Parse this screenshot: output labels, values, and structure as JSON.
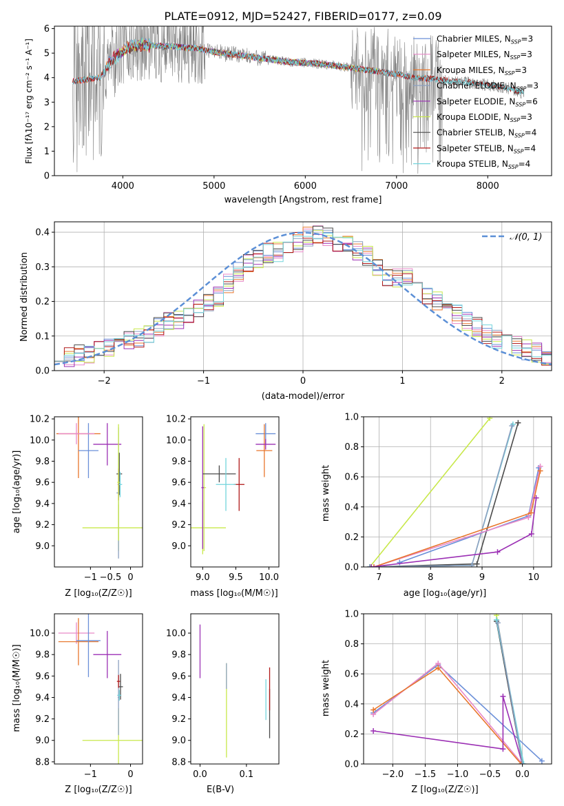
{
  "colors": {
    "Chabrier MILES": "#6a8fd8",
    "Salpeter MILES": "#e889c8",
    "Kroupa MILES": "#e8762c",
    "Chabrier ELODIE": "#8ca0c0",
    "Salpeter ELODIE": "#9b2fb4",
    "Kroupa ELODIE": "#c8e84a",
    "Chabrier STELIB": "#4a4a4a",
    "Salpeter STELIB": "#b01818",
    "Kroupa STELIB": "#72d4dc",
    "data_spectrum": "#808080",
    "normal_curve": "#5b8fd6"
  },
  "chart_data": [
    {
      "id": "spectrum",
      "type": "line",
      "title": "PLATE=0912, MJD=52427, FIBERID=0177, z=0.09",
      "xlabel": "wavelength [Angstrom, rest frame]",
      "ylabel": "Flux [fλ10⁻¹⁷ erg cm⁻² s⁻¹ A⁻¹]",
      "xlim": [
        3250,
        8700
      ],
      "ylim": [
        0,
        6.1
      ],
      "xticks": [
        4000,
        5000,
        6000,
        7000,
        8000
      ],
      "yticks": [
        0,
        1,
        2,
        3,
        4,
        5,
        6
      ],
      "legend_position": "top-right",
      "legend": [
        {
          "label": "Chabrier MILES, N",
          "sub": "SSP",
          "suffix": "=3"
        },
        {
          "label": "Salpeter MILES, N",
          "sub": "SSP",
          "suffix": "=3"
        },
        {
          "label": "Kroupa MILES, N",
          "sub": "SSP",
          "suffix": "=3"
        },
        {
          "label": "Chabrier ELODIE, N",
          "sub": "SSP",
          "suffix": "=3"
        },
        {
          "label": "Salpeter ELODIE, N",
          "sub": "SSP",
          "suffix": "=6"
        },
        {
          "label": "Kroupa ELODIE, N",
          "sub": "SSP",
          "suffix": "=3"
        },
        {
          "label": "Chabrier STELIB, N",
          "sub": "SSP",
          "suffix": "=4"
        },
        {
          "label": "Salpeter STELIB, N",
          "sub": "SSP",
          "suffix": "=4"
        },
        {
          "label": "Kroupa STELIB, N",
          "sub": "SSP",
          "suffix": "=4"
        }
      ],
      "continuum": [
        [
          3450,
          3.85
        ],
        [
          3550,
          3.9
        ],
        [
          3650,
          3.95
        ],
        [
          3750,
          4.0
        ],
        [
          3850,
          4.6
        ],
        [
          3950,
          4.9
        ],
        [
          4050,
          5.2
        ],
        [
          4200,
          5.35
        ],
        [
          4400,
          5.3
        ],
        [
          4600,
          5.25
        ],
        [
          4800,
          5.2
        ],
        [
          5000,
          5.05
        ],
        [
          5200,
          4.95
        ],
        [
          5400,
          4.85
        ],
        [
          5600,
          4.75
        ],
        [
          5800,
          4.65
        ],
        [
          6000,
          4.6
        ],
        [
          6200,
          4.55
        ],
        [
          6400,
          4.45
        ],
        [
          6600,
          4.35
        ],
        [
          6800,
          4.25
        ],
        [
          7000,
          4.15
        ],
        [
          7200,
          4.0
        ],
        [
          7400,
          3.95
        ],
        [
          7600,
          3.85
        ],
        [
          7800,
          3.8
        ],
        [
          8000,
          3.7
        ],
        [
          8200,
          3.6
        ],
        [
          8400,
          3.35
        ]
      ]
    },
    {
      "id": "residuals",
      "type": "histogram",
      "xlabel": "(data-model)/error",
      "ylabel": "Normed distribution",
      "xlim": [
        -2.5,
        2.5
      ],
      "ylim": [
        0,
        0.43
      ],
      "xticks": [
        -2,
        -1,
        0,
        1,
        2
      ],
      "yticks": [
        0.0,
        0.1,
        0.2,
        0.3,
        0.4
      ],
      "grid": true,
      "legend_position": "top-right",
      "curve_label": "𝒩(0, 1)",
      "bin_edges_start": -2.5,
      "bin_width": 0.1,
      "base_values": [
        0.035,
        0.04,
        0.045,
        0.05,
        0.055,
        0.065,
        0.075,
        0.085,
        0.095,
        0.11,
        0.125,
        0.14,
        0.15,
        0.165,
        0.18,
        0.195,
        0.215,
        0.25,
        0.285,
        0.31,
        0.325,
        0.34,
        0.345,
        0.355,
        0.37,
        0.385,
        0.39,
        0.385,
        0.37,
        0.36,
        0.345,
        0.33,
        0.3,
        0.275,
        0.265,
        0.27,
        0.25,
        0.22,
        0.2,
        0.18,
        0.16,
        0.14,
        0.125,
        0.105,
        0.09,
        0.08,
        0.07,
        0.06,
        0.05,
        0.04
      ]
    },
    {
      "id": "age_vs_z_err",
      "type": "errorbar",
      "xlabel": "Z [log₁₀(Z/Z☉)]",
      "ylabel": "age  [log₁₀(age/yr)]",
      "xlim": [
        -1.9,
        0.3
      ],
      "ylim": [
        8.8,
        10.22
      ],
      "xticks": [
        -1,
        -0.5,
        0
      ],
      "xticklabels": [
        "−1",
        "−0.5",
        "0"
      ],
      "yticks": [
        9.0,
        9.2,
        9.4,
        9.6,
        9.8,
        10.0,
        10.2
      ],
      "points": [
        {
          "model": "Kroupa MILES",
          "x": -1.3,
          "xerr": 0.55,
          "y": 10.06,
          "yerr": 0.42
        },
        {
          "model": "Chabrier MILES",
          "x": -1.05,
          "xerr": 0.25,
          "y": 9.9,
          "yerr": 0.26
        },
        {
          "model": "Salpeter MILES",
          "x": -1.35,
          "xerr": 0.45,
          "y": 10.06,
          "yerr": 0.1
        },
        {
          "model": "Salpeter ELODIE",
          "x": -0.58,
          "xerr": 0.35,
          "y": 9.96,
          "yerr": 0.2
        },
        {
          "model": "Kroupa ELODIE",
          "x": -0.3,
          "xerr": 0.9,
          "y": 9.17,
          "yerr": 0.22
        },
        {
          "model": "Chabrier ELODIE",
          "x": -0.3,
          "xerr": 0.05,
          "y": 9.5,
          "yerr": 0.62
        },
        {
          "model": "Chabrier STELIB",
          "x": -0.28,
          "xerr": 0.07,
          "y": 9.68,
          "yerr": 0.2
        },
        {
          "model": "Salpeter STELIB",
          "x": -0.3,
          "xerr": 0.02,
          "y": 9.58,
          "yerr": 0.15
        },
        {
          "model": "Kroupa STELIB",
          "x": -0.26,
          "xerr": 0.05,
          "y": 9.58,
          "yerr": 0.12
        },
        {
          "model": "Kroupa ELODIE",
          "x": -0.3,
          "xerr": 0.03,
          "y": 9.6,
          "yerr": 0.55
        }
      ]
    },
    {
      "id": "age_vs_mass_err",
      "type": "errorbar",
      "xlabel": "mass [log₁₀(M/M☉)]",
      "xlim": [
        8.82,
        10.15
      ],
      "ylim": [
        8.8,
        10.22
      ],
      "xticks": [
        9.0,
        9.5,
        10.0
      ],
      "yticks": [
        9.0,
        9.2,
        9.4,
        9.6,
        9.8,
        10.0,
        10.2
      ],
      "points": [
        {
          "model": "Kroupa ELODIE",
          "x": 9.0,
          "xerr": 0.35,
          "y": 9.17,
          "yerr": 0.25
        },
        {
          "model": "Kroupa ELODIE",
          "x": 9.02,
          "xerr": 0.03,
          "y": 9.55,
          "yerr": 0.6
        },
        {
          "model": "Salpeter ELODIE",
          "x": 9.0,
          "xerr": 0.02,
          "y": 9.55,
          "yerr": 0.58
        },
        {
          "model": "Chabrier STELIB",
          "x": 9.25,
          "xerr": 0.25,
          "y": 9.68,
          "yerr": 0.08
        },
        {
          "model": "Salpeter STELIB",
          "x": 9.55,
          "xerr": 0.08,
          "y": 9.58,
          "yerr": 0.25
        },
        {
          "model": "Kroupa STELIB",
          "x": 9.35,
          "xerr": 0.15,
          "y": 9.58,
          "yerr": 0.25
        },
        {
          "model": "Chabrier MILES",
          "x": 9.95,
          "xerr": 0.15,
          "y": 10.06,
          "yerr": 0.1
        },
        {
          "model": "Kroupa MILES",
          "x": 9.93,
          "xerr": 0.12,
          "y": 9.9,
          "yerr": 0.25
        },
        {
          "model": "Salpeter ELODIE",
          "x": 9.95,
          "xerr": 0.15,
          "y": 9.96,
          "yerr": 0.05
        }
      ]
    },
    {
      "id": "mass_weight_vs_age",
      "type": "line",
      "xlabel": "age  [log₁₀(age/yr)]",
      "ylabel": "mass weight",
      "xlim": [
        6.7,
        10.35
      ],
      "ylim": [
        0,
        1.0
      ],
      "xticks": [
        7,
        8,
        9,
        10
      ],
      "yticks": [
        0.0,
        0.2,
        0.4,
        0.6,
        0.8,
        1.0
      ],
      "grid": true,
      "series": [
        {
          "model": "Kroupa ELODIE",
          "x": [
            6.82,
            9.15
          ],
          "y": [
            0.0,
            0.99
          ]
        },
        {
          "model": "Chabrier STELIB",
          "x": [
            6.82,
            8.9,
            9.7
          ],
          "y": [
            0.0,
            0.02,
            0.96
          ]
        },
        {
          "model": "Kroupa STELIB",
          "x": [
            6.82,
            8.8,
            9.6
          ],
          "y": [
            0.0,
            0.01,
            0.95
          ]
        },
        {
          "model": "Chabrier ELODIE",
          "x": [
            6.82,
            8.8,
            9.58
          ],
          "y": [
            0.0,
            0.01,
            0.94
          ]
        },
        {
          "model": "Chabrier MILES",
          "x": [
            7.4,
            9.9,
            10.1
          ],
          "y": [
            0.03,
            0.34,
            0.66
          ]
        },
        {
          "model": "Salpeter MILES",
          "x": [
            6.9,
            9.9,
            10.13
          ],
          "y": [
            0.0,
            0.33,
            0.67
          ]
        },
        {
          "model": "Kroupa MILES",
          "x": [
            6.9,
            9.95,
            10.13
          ],
          "y": [
            0.0,
            0.36,
            0.64
          ]
        },
        {
          "model": "Salpeter ELODIE",
          "x": [
            6.85,
            9.3,
            9.96,
            10.05
          ],
          "y": [
            0.0,
            0.1,
            0.22,
            0.46
          ]
        }
      ]
    },
    {
      "id": "mass_vs_z_err",
      "type": "errorbar",
      "xlabel": "Z [log₁₀(Z/Z☉)]",
      "ylabel": "mass [log₁₀(M/M☉)]",
      "xlim": [
        -1.9,
        0.3
      ],
      "ylim": [
        8.78,
        10.18
      ],
      "xticks": [
        -1,
        0
      ],
      "xticklabels": [
        "−1",
        "0"
      ],
      "yticks": [
        8.8,
        9.0,
        9.2,
        9.4,
        9.6,
        9.8,
        10.0
      ],
      "points": [
        {
          "model": "Salpeter MILES",
          "x": -1.35,
          "xerr": 0.45,
          "y": 10.0,
          "yerr": 0.1
        },
        {
          "model": "Kroupa MILES",
          "x": -1.3,
          "xerr": 0.5,
          "y": 9.92,
          "yerr": 0.22
        },
        {
          "model": "Chabrier MILES",
          "x": -1.05,
          "xerr": 0.3,
          "y": 9.93,
          "yerr": 0.34
        },
        {
          "model": "Salpeter ELODIE",
          "x": -0.58,
          "xerr": 0.35,
          "y": 9.8,
          "yerr": 0.22
        },
        {
          "model": "Kroupa ELODIE",
          "x": -0.3,
          "xerr": 0.9,
          "y": 9.0,
          "yerr": 0.3
        },
        {
          "model": "Chabrier ELODIE",
          "x": -0.3,
          "xerr": 0.02,
          "y": 9.4,
          "yerr": 0.35
        },
        {
          "model": "Chabrier STELIB",
          "x": -0.25,
          "xerr": 0.06,
          "y": 9.5,
          "yerr": 0.12
        },
        {
          "model": "Salpeter STELIB",
          "x": -0.3,
          "xerr": 0.04,
          "y": 9.55,
          "yerr": 0.06
        },
        {
          "model": "Kroupa STELIB",
          "x": -0.28,
          "xerr": 0.05,
          "y": 9.42,
          "yerr": 0.05
        }
      ]
    },
    {
      "id": "mass_vs_ebv_err",
      "type": "errorbar",
      "xlabel": "E(B-V)",
      "xlim": [
        -0.02,
        0.17
      ],
      "ylim": [
        8.78,
        10.18
      ],
      "xticks": [
        0.0,
        0.1
      ],
      "yticks": [
        8.8,
        9.0,
        9.2,
        9.4,
        9.6,
        9.8,
        10.0
      ],
      "points": [
        {
          "model": "Salpeter ELODIE",
          "x": 0.0,
          "xerr": 0.0,
          "y": 9.83,
          "yerr": 0.25
        },
        {
          "model": "Kroupa ELODIE",
          "x": 0.057,
          "xerr": 0.0,
          "y": 9.28,
          "yerr": 0.44
        },
        {
          "model": "Chabrier ELODIE",
          "x": 0.057,
          "xerr": 0.0,
          "y": 9.6,
          "yerr": 0.12
        },
        {
          "model": "Kroupa STELIB",
          "x": 0.142,
          "xerr": 0.0,
          "y": 9.38,
          "yerr": 0.19
        },
        {
          "model": "Chabrier STELIB",
          "x": 0.15,
          "xerr": 0.0,
          "y": 9.25,
          "yerr": 0.23
        },
        {
          "model": "Salpeter STELIB",
          "x": 0.15,
          "xerr": 0.0,
          "y": 9.48,
          "yerr": 0.2
        }
      ]
    },
    {
      "id": "mass_weight_vs_z",
      "type": "line",
      "xlabel": "Z [log₁₀(Z/Z☉)]",
      "ylabel": "mass weight",
      "xlim": [
        -2.45,
        0.45
      ],
      "ylim": [
        0,
        1.0
      ],
      "xticks": [
        -2.0,
        -1.5,
        -1.0,
        -0.5,
        0.0
      ],
      "xticklabels": [
        "−2.0",
        "−1.5",
        "−1.0",
        "−0.5",
        "0.0"
      ],
      "yticks": [
        0.0,
        0.2,
        0.4,
        0.6,
        0.8,
        1.0
      ],
      "grid": true,
      "series": [
        {
          "model": "Chabrier MILES",
          "x": [
            -2.3,
            -1.3,
            0.3
          ],
          "y": [
            0.34,
            0.66,
            0.02
          ]
        },
        {
          "model": "Salpeter MILES",
          "x": [
            -2.3,
            -1.3,
            0.0
          ],
          "y": [
            0.33,
            0.67,
            0.0
          ]
        },
        {
          "model": "Kroupa MILES",
          "x": [
            -2.3,
            -1.3,
            -0.02
          ],
          "y": [
            0.36,
            0.64,
            0.0
          ]
        },
        {
          "model": "Salpeter ELODIE",
          "x": [
            -2.3,
            -0.3,
            -0.3,
            0.0
          ],
          "y": [
            0.22,
            0.1,
            0.45,
            0.0
          ]
        },
        {
          "model": "Kroupa ELODIE",
          "x": [
            -0.4,
            0.0
          ],
          "y": [
            0.99,
            0.0
          ]
        },
        {
          "model": "Chabrier STELIB",
          "x": [
            -0.4,
            0.0
          ],
          "y": [
            0.95,
            0.0
          ]
        },
        {
          "model": "Kroupa STELIB",
          "x": [
            -0.4,
            0.02
          ],
          "y": [
            0.96,
            0.0
          ]
        },
        {
          "model": "Chabrier ELODIE",
          "x": [
            -0.38,
            0.0
          ],
          "y": [
            0.94,
            0.0
          ]
        }
      ]
    }
  ]
}
